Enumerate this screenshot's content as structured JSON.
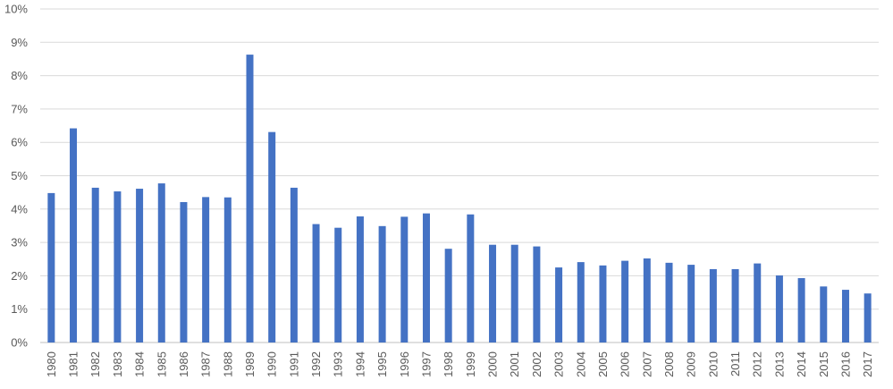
{
  "chart_data": {
    "type": "bar",
    "title": "",
    "xlabel": "",
    "ylabel": "",
    "ylim": [
      0,
      10
    ],
    "y_ticks": [
      "0%",
      "1%",
      "2%",
      "3%",
      "4%",
      "5%",
      "6%",
      "7%",
      "8%",
      "9%",
      "10%"
    ],
    "grid": true,
    "legend": "none",
    "bar_color": "#4472c4",
    "categories": [
      "1980",
      "1981",
      "1982",
      "1983",
      "1984",
      "1985",
      "1986",
      "1987",
      "1988",
      "1989",
      "1990",
      "1991",
      "1992",
      "1993",
      "1994",
      "1995",
      "1996",
      "1997",
      "1998",
      "1999",
      "2000",
      "2001",
      "2002",
      "2003",
      "2004",
      "2005",
      "2006",
      "2007",
      "2008",
      "2009",
      "2010",
      "2011",
      "2012",
      "2013",
      "2014",
      "2015",
      "2016",
      "2017"
    ],
    "values": [
      4.48,
      6.42,
      4.64,
      4.53,
      4.61,
      4.77,
      4.21,
      4.36,
      4.35,
      8.63,
      6.31,
      4.64,
      3.55,
      3.44,
      3.78,
      3.49,
      3.77,
      3.87,
      2.81,
      3.84,
      2.93,
      2.93,
      2.88,
      2.25,
      2.41,
      2.31,
      2.45,
      2.52,
      2.39,
      2.33,
      2.2,
      2.2,
      2.37,
      2.01,
      1.93,
      1.68,
      1.58,
      1.47
    ]
  }
}
